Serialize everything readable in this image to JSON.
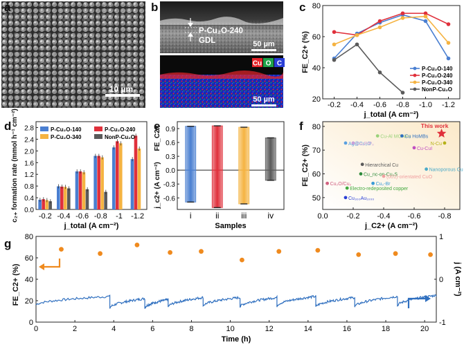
{
  "panel_labels": [
    "a",
    "b",
    "c",
    "d",
    "e",
    "f",
    "g"
  ],
  "panel_a": {
    "scalebar": "10 µm"
  },
  "panel_b": {
    "label_top": "P-Cu₂O-240",
    "label_gdl": "GDL",
    "scalebar_top": "50 µm",
    "scalebar_bottom": "50 µm",
    "elements": [
      {
        "label": "Cu",
        "color": "#e8252b"
      },
      {
        "label": "O",
        "color": "#1ea34a"
      },
      {
        "label": "C",
        "color": "#2a3fd6"
      }
    ]
  },
  "colors": {
    "blue": "#4a7fd1",
    "red": "#e0303b",
    "orange": "#f5b341",
    "gray": "#5a5a5a",
    "timeline_line": "#2f6fbf",
    "timeline_dot": "#ef8a1e",
    "panel_f_bg": "#fbe9c9"
  },
  "chart_data": [
    {
      "id": "c",
      "type": "line",
      "xlabel": "j_total (A cm⁻²)",
      "ylabel": "FE_C2+ (%)",
      "xlim": [
        -0.1,
        -1.3
      ],
      "ylim": [
        20,
        80
      ],
      "x": [
        -0.2,
        -0.4,
        -0.6,
        -0.8,
        -1.0,
        -1.2
      ],
      "x_ticks": [
        "-0.2",
        "-0.4",
        "-0.6",
        "-0.8",
        "-1.0",
        "-1.2"
      ],
      "y_ticks": [
        20,
        40,
        60,
        80
      ],
      "legend_position": "bottom-right",
      "series": [
        {
          "name": "P-Cu₂O-140",
          "color": "#4a7fd1",
          "values": [
            46,
            62,
            69,
            74,
            70,
            46
          ]
        },
        {
          "name": "P-Cu₂O-240",
          "color": "#e0303b",
          "values": [
            63,
            61,
            70,
            75,
            75,
            68
          ]
        },
        {
          "name": "P-Cu₂O-340",
          "color": "#f5b341",
          "values": [
            55,
            61,
            66,
            72,
            73,
            56
          ]
        },
        {
          "name": "NonP-Cu₂O",
          "color": "#5a5a5a",
          "values": [
            45,
            55,
            37,
            24,
            null,
            null
          ]
        }
      ]
    },
    {
      "id": "d",
      "type": "bar",
      "xlabel": "j_total (A cm⁻²)",
      "ylabel": "c₂₊ formation rate (mmol h⁻¹ cm⁻²)",
      "categories": [
        "-0.2",
        "-0.4",
        "-0.6",
        "-0.8",
        "-1",
        "-1.2"
      ],
      "ylim": [
        0,
        3.0
      ],
      "y_ticks": [
        "0.0",
        "0.4",
        "0.8",
        "1.2",
        "1.6",
        "2.0",
        "2.4",
        "2.8"
      ],
      "legend_position": "top-left",
      "series": [
        {
          "name": "P-Cu₂O-140",
          "color": "#4a7fd1",
          "values": [
            0.33,
            0.79,
            1.3,
            1.83,
            2.12,
            1.72
          ]
        },
        {
          "name": "P-Cu₂O-240",
          "color": "#e0303b",
          "values": [
            0.35,
            0.78,
            1.3,
            1.83,
            2.33,
            2.52
          ]
        },
        {
          "name": "P-Cu₂O-340",
          "color": "#f5b341",
          "values": [
            0.32,
            0.77,
            1.27,
            1.78,
            2.26,
            2.08
          ]
        },
        {
          "name": "NonP-Cu₂O",
          "color": "#5a5a5a",
          "values": [
            0.28,
            0.72,
            0.69,
            0.6,
            null,
            null
          ]
        }
      ]
    },
    {
      "id": "e",
      "type": "bar",
      "xlabel": "Samples",
      "ylabel_top": "FE_C2+",
      "ylabel_bottom": "j_c2+ (A cm⁻²)",
      "categories": [
        "i",
        "ii",
        "iii",
        "iv"
      ],
      "top_values": [
        0.95,
        0.96,
        0.93,
        0.7
      ],
      "bottom_values": [
        -0.69,
        -0.81,
        -0.73,
        -0.22
      ],
      "ylim": [
        -0.85,
        1.05
      ],
      "y_ticks": [
        "-0.6",
        "-0.3",
        "0.0",
        "0.3",
        "0.6",
        "0.9"
      ],
      "colors": [
        "#4a7fd1",
        "#e0303b",
        "#f5b341",
        "#5a5a5a"
      ]
    },
    {
      "id": "f",
      "type": "scatter",
      "xlabel": "j_C2+ (A cm⁻²)",
      "ylabel": "FE_C2+ (%)",
      "xlim": [
        0,
        -0.9
      ],
      "ylim": [
        45,
        82
      ],
      "x_ticks": [
        "0.0",
        "-0.2",
        "-0.4",
        "-0.6",
        "-0.8"
      ],
      "y_ticks": [
        50,
        60,
        70,
        80
      ],
      "points": [
        {
          "label": "This work",
          "x": -0.78,
          "y": 77,
          "color": "#e0303b",
          "marker": "star"
        },
        {
          "label": "Cu-Al MONFs",
          "x": -0.36,
          "y": 76,
          "color": "#9ad27a"
        },
        {
          "label": "Cu HoMBs",
          "x": -0.52,
          "y": 76,
          "color": "#2f6fbf"
        },
        {
          "label": "Ag@Cu₂O",
          "x": -0.15,
          "y": 73,
          "color": "#5aa0e0"
        },
        {
          "label": "N-Cu",
          "x": -0.8,
          "y": 73,
          "color": "#b6b21a"
        },
        {
          "label": "Cu₃P/Pₒ",
          "x": -0.2,
          "y": 73,
          "color": "#c9a0d8"
        },
        {
          "label": "Cu-CuI",
          "x": -0.6,
          "y": 71,
          "color": "#c14fc1"
        },
        {
          "label": "Hierarchical Cu",
          "x": -0.26,
          "y": 64,
          "color": "#5a5a5a"
        },
        {
          "label": "Nanoporous Cu",
          "x": -0.68,
          "y": 62,
          "color": "#4aaac8"
        },
        {
          "label": "Cu_nc-on-Cu₂S",
          "x": -0.25,
          "y": 60,
          "color": "#2c8a3a"
        },
        {
          "label": "(001)-orientated CuO",
          "x": -0.4,
          "y": 59,
          "color": "#f0a0a0"
        },
        {
          "label": "Cu₂O/Cu₂",
          "x": -0.03,
          "y": 56,
          "color": "#d06080"
        },
        {
          "label": "Cu₂-Br",
          "x": -0.33,
          "y": 56,
          "color": "#3a9bd6"
        },
        {
          "label": "Electro-redeposited copper",
          "x": -0.16,
          "y": 54,
          "color": "#42a83d"
        },
        {
          "label": "Cu₃₀₀Au₁₀₀₀",
          "x": -0.15,
          "y": 50,
          "color": "#2a3fd6"
        }
      ]
    },
    {
      "id": "g",
      "type": "line",
      "xlabel": "Time (h)",
      "ylabel_left": "FE_C2+ (%)",
      "ylabel_right": "j (A cm⁻²)",
      "xlim": [
        0,
        20.6
      ],
      "ylim_left": [
        0,
        80
      ],
      "ylim_right": [
        -1,
        1
      ],
      "x_ticks": [
        0,
        2,
        4,
        6,
        8,
        10,
        12,
        14,
        16,
        18,
        20
      ],
      "y_ticks_left": [
        0,
        20,
        40,
        60,
        80
      ],
      "y_ticks_right": [
        -1,
        0,
        1
      ],
      "fe_points": {
        "x": [
          1.3,
          3.3,
          5.2,
          6.9,
          8.5,
          10.6,
          12.5,
          14.5,
          16.6,
          18.5,
          20.3
        ],
        "y": [
          68,
          64,
          72,
          65,
          66,
          58,
          66,
          67,
          63,
          64,
          63
        ]
      },
      "current_segments": [
        {
          "x0": 0.0,
          "x1": 3.8,
          "y0": 16,
          "y1": 24
        },
        {
          "x0": 3.8,
          "x1": 5.6,
          "y0": 13,
          "y1": 22
        },
        {
          "x0": 5.6,
          "x1": 6.8,
          "y0": 13,
          "y1": 21
        },
        {
          "x0": 6.8,
          "x1": 8.6,
          "y0": 14,
          "y1": 23
        },
        {
          "x0": 8.6,
          "x1": 10.5,
          "y0": 15,
          "y1": 23
        },
        {
          "x0": 10.5,
          "x1": 12.4,
          "y0": 14,
          "y1": 23
        },
        {
          "x0": 12.4,
          "x1": 14.4,
          "y0": 15,
          "y1": 24
        },
        {
          "x0": 14.4,
          "x1": 16.4,
          "y0": 14,
          "y1": 23
        },
        {
          "x0": 16.4,
          "x1": 18.6,
          "y0": 14,
          "y1": 24
        },
        {
          "x0": 18.6,
          "x1": 20.6,
          "y0": 15,
          "y1": 25
        }
      ]
    }
  ]
}
